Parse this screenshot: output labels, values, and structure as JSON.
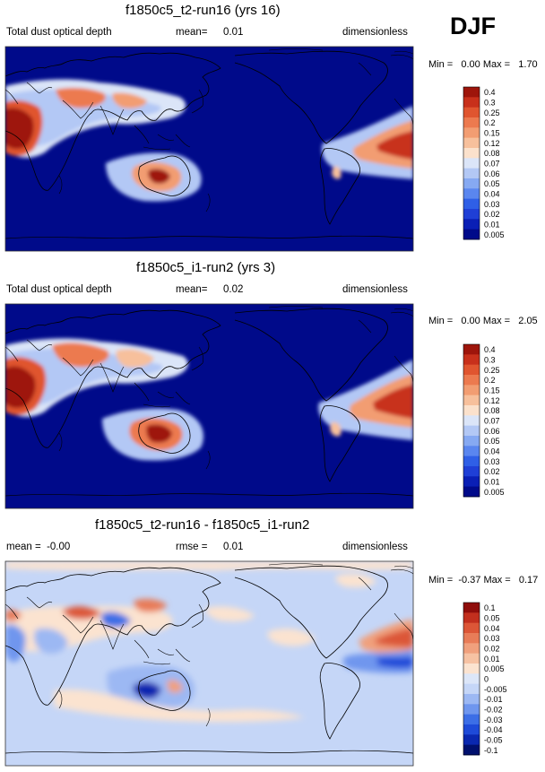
{
  "season": "DJF",
  "colors": {
    "abs": [
      "#000a8a",
      "#0a1fb5",
      "#1f3fd6",
      "#2f5fe6",
      "#5a86ef",
      "#86a9f2",
      "#b3c8f5",
      "#dbe5f8",
      "#fbe1cc",
      "#f7c09c",
      "#f29d72",
      "#ec7a4f",
      "#e0552f",
      "#c8301b",
      "#9e150b"
    ],
    "diff": [
      "#00106e",
      "#0a28b0",
      "#1e4ad8",
      "#3c6ee6",
      "#6f96ee",
      "#9cb8f3",
      "#c5d6f7",
      "#dce6f8",
      "#fbe3d0",
      "#f6c2a3",
      "#f0a07d",
      "#e87c58",
      "#dc5637",
      "#c22f1e",
      "#8f0d0b"
    ]
  },
  "panels": [
    {
      "title": "f1850c5_t2-run16 (yrs 16)",
      "left_label": "Total dust optical depth",
      "mean_label": "mean=",
      "mean_value": "0.01",
      "right_label": "dimensionless",
      "minmax": "Min =   0.00 Max =   1.70",
      "levels": [
        "0.4",
        "0.3",
        "0.25",
        "0.2",
        "0.15",
        "0.12",
        "0.08",
        "0.07",
        "0.06",
        "0.05",
        "0.04",
        "0.03",
        "0.02",
        "0.01",
        "0.005"
      ]
    },
    {
      "title": "f1850c5_i1-run2 (yrs 3)",
      "left_label": "Total dust optical depth",
      "mean_label": "mean=",
      "mean_value": "0.02",
      "right_label": "dimensionless",
      "minmax": "Min =   0.00 Max =   2.05",
      "levels": [
        "0.4",
        "0.3",
        "0.25",
        "0.2",
        "0.15",
        "0.12",
        "0.08",
        "0.07",
        "0.06",
        "0.05",
        "0.04",
        "0.03",
        "0.02",
        "0.01",
        "0.005"
      ]
    },
    {
      "title": "f1850c5_t2-run16 - f1850c5_i1-run2",
      "left_label": "mean =  -0.00",
      "mean_label": "rmse =",
      "mean_value": "0.01",
      "right_label": "dimensionless",
      "minmax": "Min =  -0.37 Max =   0.17",
      "levels": [
        "0.1",
        "0.05",
        "0.04",
        "0.03",
        "0.02",
        "0.01",
        "0.005",
        "0",
        "-0.005",
        "-0.01",
        "-0.02",
        "-0.03",
        "-0.04",
        "-0.05",
        "-0.1"
      ]
    }
  ],
  "chart_data": [
    {
      "type": "heatmap",
      "title": "f1850c5_t2-run16 (yrs 16)",
      "variable": "Total dust optical depth",
      "units": "dimensionless",
      "mean": 0.01,
      "min": 0.0,
      "max": 1.7,
      "contour_levels": [
        0.005,
        0.01,
        0.02,
        0.03,
        0.04,
        0.05,
        0.06,
        0.07,
        0.08,
        0.12,
        0.15,
        0.2,
        0.25,
        0.3,
        0.4
      ]
    },
    {
      "type": "heatmap",
      "title": "f1850c5_i1-run2 (yrs 3)",
      "variable": "Total dust optical depth",
      "units": "dimensionless",
      "mean": 0.02,
      "min": 0.0,
      "max": 2.05,
      "contour_levels": [
        0.005,
        0.01,
        0.02,
        0.03,
        0.04,
        0.05,
        0.06,
        0.07,
        0.08,
        0.12,
        0.15,
        0.2,
        0.25,
        0.3,
        0.4
      ]
    },
    {
      "type": "heatmap",
      "title": "f1850c5_t2-run16 - f1850c5_i1-run2",
      "units": "dimensionless",
      "mean": -0.0,
      "rmse": 0.01,
      "min": -0.37,
      "max": 0.17,
      "contour_levels": [
        -0.1,
        -0.05,
        -0.04,
        -0.03,
        -0.02,
        -0.01,
        -0.005,
        0,
        0.005,
        0.01,
        0.02,
        0.03,
        0.04,
        0.05,
        0.1
      ]
    }
  ]
}
